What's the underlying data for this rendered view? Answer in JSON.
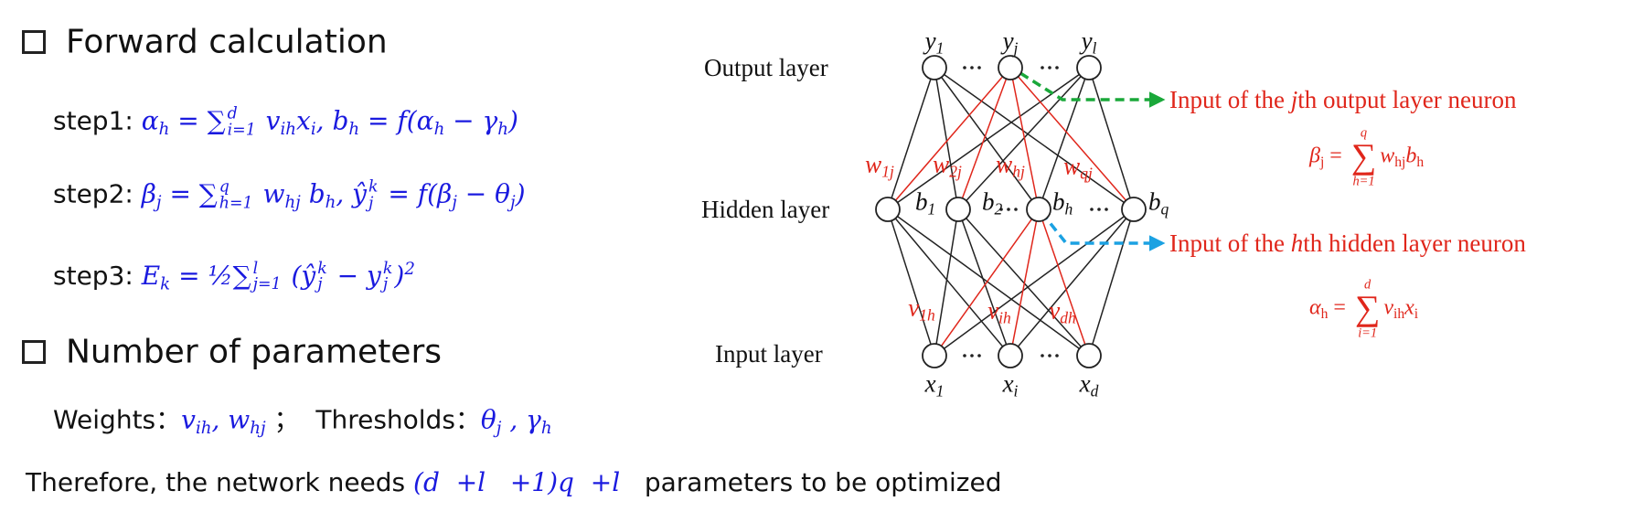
{
  "sections": [
    {
      "heading": "Forward calculation",
      "lines": [
        [
          "step1: ",
          {
            "math": [
              "α",
              {
                "sub": "h"
              },
              " = ∑",
              {
                "sub": "i=1",
                "sup": "d"
              },
              " v",
              {
                "sub": "ih"
              },
              "x",
              {
                "sub": "i"
              },
              ", b",
              {
                "sub": "h"
              },
              " = f(α",
              {
                "sub": "h"
              },
              " − γ",
              {
                "sub": "h"
              },
              ")"
            ]
          }
        ],
        [
          "step2: ",
          {
            "math": [
              "β",
              {
                "sub": "j"
              },
              " = ∑",
              {
                "sub": "h=1",
                "sup": "q"
              },
              " w",
              {
                "sub": "hj"
              },
              " b",
              {
                "sub": "h"
              },
              ", ŷ",
              {
                "sub": "j",
                "sup": "k"
              },
              " = f(β",
              {
                "sub": "j"
              },
              " − θ",
              {
                "sub": "j"
              },
              ")"
            ]
          }
        ],
        [
          "step3: ",
          {
            "math": [
              "E",
              {
                "sub": "k"
              },
              " = ½∑",
              {
                "sub": "j=1",
                "sup": "l"
              },
              " (ŷ",
              {
                "sub": "j",
                "sup": "k"
              },
              " − y",
              {
                "sub": "j",
                "sup": "k"
              },
              ")",
              {
                "sup": "2"
              }
            ]
          }
        ]
      ]
    },
    {
      "heading": "Number of parameters",
      "lines": [
        [
          "Weights：",
          {
            "math": [
              "v",
              {
                "sub": "ih"
              },
              ", w",
              {
                "sub": "hj"
              }
            ]
          },
          " ；  Thresholds：",
          {
            "math": [
              "θ",
              {
                "sub": "j"
              },
              " , γ",
              {
                "sub": "h"
              }
            ]
          }
        ]
      ]
    }
  ],
  "conclusion": [
    "Therefore, the network needs ",
    {
      "math": [
        "(d  +l   +1)q  +l"
      ]
    },
    "   parameters to be optimized"
  ],
  "diagram": {
    "layers": [
      "Output layer",
      "Hidden layer",
      "Input layer"
    ],
    "outputs": [
      [
        "y",
        {
          "sub": "1"
        }
      ],
      [
        "y",
        {
          "sub": "j"
        }
      ],
      [
        "y",
        {
          "sub": "l"
        }
      ]
    ],
    "hidden": [
      [
        "b",
        {
          "sub": "1"
        }
      ],
      [
        "b",
        {
          "sub": "2"
        }
      ],
      [
        "b",
        {
          "sub": "h"
        }
      ],
      [
        "b",
        {
          "sub": "q"
        }
      ]
    ],
    "inputs": [
      [
        "x",
        {
          "sub": "1"
        }
      ],
      [
        "x",
        {
          "sub": "i"
        }
      ],
      [
        "x",
        {
          "sub": "d"
        }
      ]
    ],
    "output_weights": [
      [
        "w",
        {
          "sub": "1j"
        }
      ],
      [
        "w",
        {
          "sub": "2j"
        }
      ],
      [
        "w",
        {
          "sub": "hj"
        }
      ],
      [
        "w",
        {
          "sub": "qj"
        }
      ]
    ],
    "input_weights": [
      [
        "v",
        {
          "sub": "1h"
        }
      ],
      [
        "v",
        {
          "sub": "ih"
        }
      ],
      [
        "v",
        {
          "sub": "dh"
        }
      ]
    ],
    "annotations": [
      {
        "text": [
          "Input of the ",
          {
            "i": "j"
          },
          "th output layer neuron"
        ],
        "formula": [
          {
            "i": "β"
          },
          {
            "sub": "j"
          },
          " = ",
          {
            "over": "q",
            "op": "∑",
            "under": "h=1"
          },
          {
            "i": "w"
          },
          {
            "sub": "hj"
          },
          {
            "i": "b"
          },
          {
            "sub": "h"
          }
        ]
      },
      {
        "text": [
          "Input of the ",
          {
            "i": "h"
          },
          "th hidden layer neuron"
        ],
        "formula": [
          {
            "i": "α"
          },
          {
            "sub": "h"
          },
          " = ",
          {
            "over": "d",
            "op": "∑",
            "under": "i=1"
          },
          {
            "i": "v"
          },
          {
            "sub": "ih"
          },
          {
            "i": "x"
          },
          {
            "sub": "i"
          }
        ]
      }
    ]
  }
}
